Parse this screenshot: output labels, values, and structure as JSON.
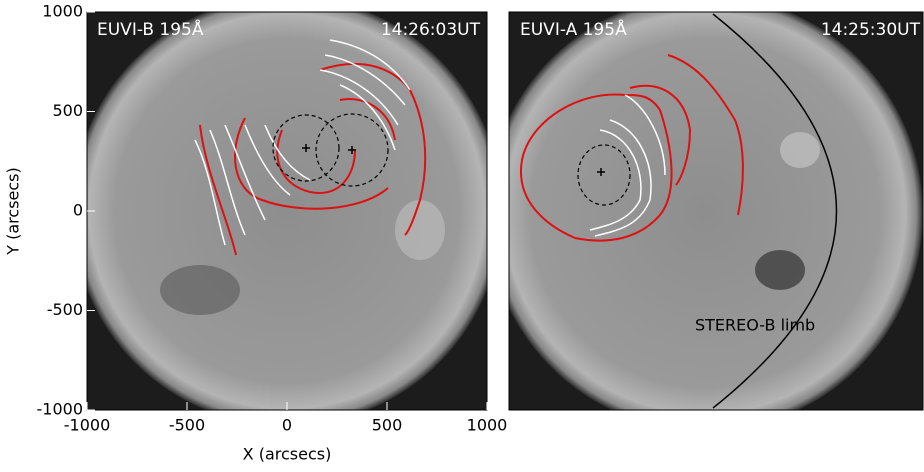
{
  "chart_data": [
    {
      "type": "image",
      "title": "EUVI-B 195Å",
      "subtitle": "14:26:03UT",
      "x_label": "X (arcsecs)",
      "y_label": "Y (arcsecs)",
      "xlim": [
        -1000,
        1000
      ],
      "ylim": [
        -1000,
        1000
      ],
      "xticks": [
        -1000,
        -500,
        0,
        500,
        1000
      ],
      "yticks": [
        -1000,
        -500,
        0,
        500,
        1000
      ]
    },
    {
      "type": "image",
      "title": "EUVI-A 195Å",
      "subtitle": "14:25:30UT",
      "annotation": "STEREO-B limb",
      "xlim": [
        -1000,
        1000
      ],
      "ylim": [
        -1000,
        1000
      ]
    }
  ]
}
